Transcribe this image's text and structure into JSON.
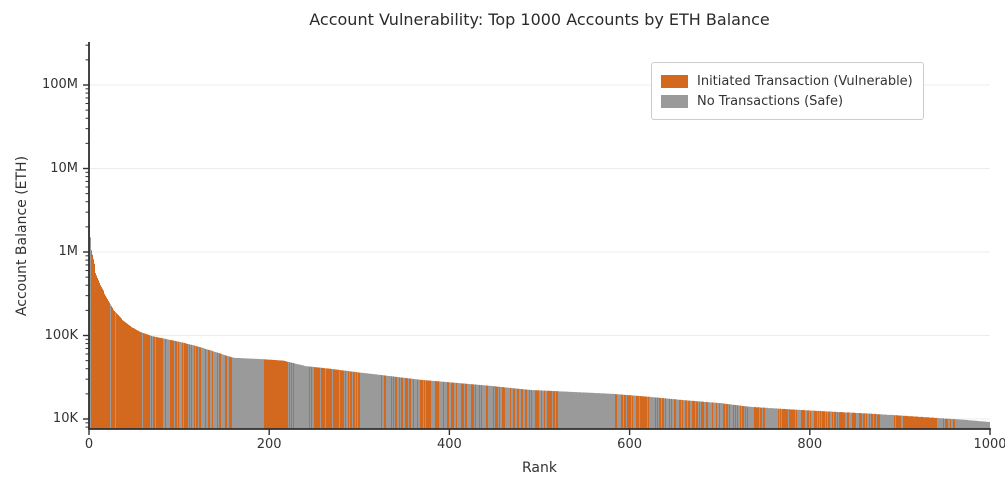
{
  "chart_data": {
    "type": "bar",
    "title": "Account Vulnerability: Top 1000 Accounts by ETH Balance",
    "xlabel": "Rank",
    "ylabel": "Account Balance (ETH)",
    "y_scale": "log",
    "grid": "horizontal-major",
    "xlim": [
      0,
      1000
    ],
    "ylim": [
      7500,
      300000000
    ],
    "x_ticks": [
      0,
      200,
      400,
      600,
      800,
      1000
    ],
    "y_ticks": [
      {
        "label": "10K",
        "value": 10000
      },
      {
        "label": "100K",
        "value": 100000
      },
      {
        "label": "1M",
        "value": 1000000
      },
      {
        "label": "10M",
        "value": 10000000
      },
      {
        "label": "100M",
        "value": 100000000
      }
    ],
    "n_bars": 1000,
    "legend": {
      "position": "upper-right",
      "entries": [
        {
          "label": "Initiated Transaction (Vulnerable)",
          "color": "#d2691e"
        },
        {
          "label": "No Transactions (Safe)",
          "color": "#9a9a9a"
        }
      ]
    },
    "series_note": "Top 1000 accounts sorted descending by ETH balance; bar color marks whether the account ever initiated a transaction",
    "profile_points": [
      [
        0,
        2200000
      ],
      [
        1,
        1500000
      ],
      [
        2,
        1050000
      ],
      [
        4,
        820000
      ],
      [
        7,
        560000
      ],
      [
        12,
        400000
      ],
      [
        18,
        300000
      ],
      [
        25,
        215000
      ],
      [
        35,
        160000
      ],
      [
        44,
        132000
      ],
      [
        55,
        112000
      ],
      [
        70,
        98000
      ],
      [
        100,
        84000
      ],
      [
        120,
        74000
      ],
      [
        139,
        64000
      ],
      [
        155,
        56000
      ],
      [
        161,
        54000
      ],
      [
        193,
        52000
      ],
      [
        215,
        50000
      ],
      [
        240,
        43000
      ],
      [
        267,
        40000
      ],
      [
        300,
        36000
      ],
      [
        330,
        33000
      ],
      [
        367,
        29500
      ],
      [
        400,
        27500
      ],
      [
        444,
        25000
      ],
      [
        489,
        22300
      ],
      [
        520,
        21500
      ],
      [
        581,
        20000
      ],
      [
        620,
        18500
      ],
      [
        660,
        16800
      ],
      [
        700,
        15500
      ],
      [
        733,
        14000
      ],
      [
        780,
        13000
      ],
      [
        820,
        12300
      ],
      [
        860,
        11700
      ],
      [
        900,
        11000
      ],
      [
        940,
        10300
      ],
      [
        970,
        9800
      ],
      [
        999,
        9200
      ]
    ],
    "gray_clusters": [
      [
        0,
        1
      ],
      [
        161,
        193
      ],
      [
        227,
        243
      ],
      [
        303,
        317
      ],
      [
        520,
        581
      ],
      [
        751,
        760
      ],
      [
        878,
        892
      ],
      [
        962,
        1000
      ]
    ],
    "orange_runs": [
      [
        1,
        9
      ],
      [
        33,
        50
      ],
      [
        196,
        216
      ],
      [
        903,
        940
      ]
    ],
    "orange_density": [
      [
        0,
        0.93
      ],
      [
        55,
        0.52
      ],
      [
        193,
        0.62
      ],
      [
        290,
        0.5
      ],
      [
        444,
        0.55
      ],
      [
        581,
        0.52
      ],
      [
        800,
        0.5
      ],
      [
        930,
        0.35
      ]
    ],
    "color_seed": 7,
    "colors": {
      "vulnerable": "#d2691e",
      "safe": "#9a9a9a",
      "grid": "#ececec",
      "spine": "#2f2f2f",
      "text": "#333333",
      "title_text": "#2b2b2b",
      "background": "#ffffff",
      "legend_border": "#cccccc"
    }
  }
}
